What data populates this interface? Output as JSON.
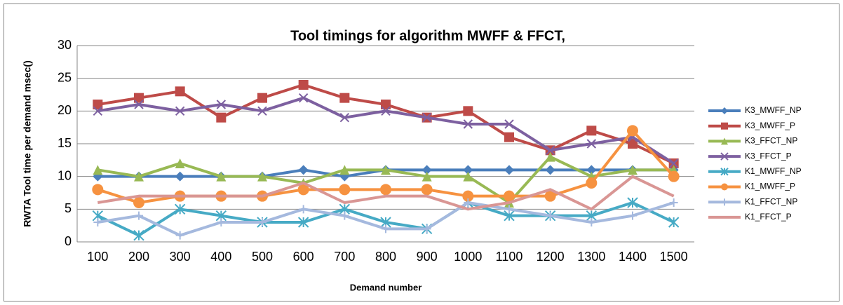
{
  "chart_data": {
    "type": "line",
    "title": "Tool timings for algorithm MWFF & FFCT,",
    "x_label": "Demand number",
    "y_label": "RWTA Tool time per demand msec()",
    "categories": [
      "100",
      "200",
      "300",
      "400",
      "500",
      "600",
      "700",
      "800",
      "900",
      "1000",
      "1100",
      "1200",
      "1300",
      "1400",
      "1500"
    ],
    "ylim": [
      0,
      30
    ],
    "yticks": [
      0,
      5,
      10,
      15,
      20,
      25,
      30
    ],
    "grid": true,
    "legend": "right",
    "series": [
      {
        "name": "K3_MWFF_NP",
        "color": "#4a7ebb",
        "marker": "diamond",
        "values": [
          10,
          10,
          10,
          10,
          10,
          11,
          10,
          11,
          11,
          11,
          11,
          11,
          11,
          11,
          11
        ]
      },
      {
        "name": "K3_MWFF_P",
        "color": "#be4b48",
        "marker": "square",
        "values": [
          21,
          22,
          23,
          19,
          22,
          24,
          22,
          21,
          19,
          20,
          16,
          14,
          17,
          15,
          12
        ]
      },
      {
        "name": "K3_FFCT_NP",
        "color": "#98b954",
        "marker": "triangle",
        "values": [
          11,
          10,
          12,
          10,
          10,
          9,
          11,
          11,
          10,
          10,
          6,
          13,
          10,
          11,
          11
        ]
      },
      {
        "name": "K3_FFCT_P",
        "color": "#7d60a0",
        "marker": "x",
        "values": [
          20,
          21,
          20,
          21,
          20,
          22,
          19,
          20,
          19,
          18,
          18,
          14,
          15,
          16,
          12
        ]
      },
      {
        "name": "K1_MWFF_NP",
        "color": "#46aac5",
        "marker": "star",
        "values": [
          4,
          1,
          5,
          4,
          3,
          3,
          5,
          3,
          2,
          6,
          4,
          4,
          4,
          6,
          3
        ]
      },
      {
        "name": "K1_MWFF_P",
        "color": "#f69240",
        "marker": "circle",
        "values": [
          8,
          6,
          7,
          7,
          7,
          8,
          8,
          8,
          8,
          7,
          7,
          7,
          9,
          17,
          10
        ]
      },
      {
        "name": "K1_FFCT_NP",
        "color": "#a5b9de",
        "marker": "plus",
        "values": [
          3,
          4,
          1,
          3,
          3,
          5,
          4,
          2,
          2,
          6,
          5,
          4,
          3,
          4,
          6
        ]
      },
      {
        "name": "K1_FFCT_P",
        "color": "#d99694",
        "marker": "none",
        "values": [
          6,
          7,
          7,
          7,
          7,
          9,
          6,
          7,
          7,
          5,
          6,
          8,
          5,
          10,
          7
        ]
      }
    ]
  }
}
